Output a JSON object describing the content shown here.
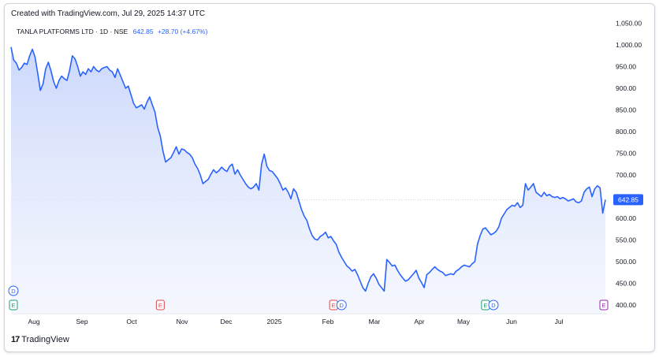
{
  "header": {
    "created": "Created with TradingView.com, Jul 29, 2025 14:37 UTC"
  },
  "legend": {
    "symbol": "TANLA PLATFORMS LTD · 1D · NSE",
    "price": "642.85",
    "change": "+28.70 (+4.67%)"
  },
  "brand": {
    "logo_text": "TradingView"
  },
  "colors": {
    "line": "#2962ff",
    "fill_top": "#c9d6fb",
    "fill_bottom": "#ffffff",
    "label_bg": "#2962ff",
    "earnings": "#e0454f",
    "earnings_green": "#1b9e77",
    "dividend": "#2962ff"
  },
  "chart_data": {
    "type": "area",
    "title": "TANLA PLATFORMS LTD · 1D · NSE",
    "ylim": [
      380,
      1060
    ],
    "y_ticks": [
      "400.00",
      "450.00",
      "500.00",
      "550.00",
      "600.00",
      "650.00",
      "700.00",
      "750.00",
      "800.00",
      "850.00",
      "900.00",
      "950.00",
      "1,000.00",
      "1,050.00"
    ],
    "x_ticks": [
      "Aug",
      "Sep",
      "Oct",
      "Nov",
      "Dec",
      "2025",
      "Feb",
      "Mar",
      "Apr",
      "May",
      "Jun",
      "Jul"
    ],
    "last_price_label": "642.85",
    "markers": [
      {
        "label": "D",
        "color": "blue",
        "idx": 0,
        "row": 1
      },
      {
        "label": "E",
        "color": "green",
        "idx": 0,
        "row": 2
      },
      {
        "label": "E",
        "color": "red",
        "idx": 56,
        "row": 2
      },
      {
        "label": "E",
        "color": "red",
        "idx": 121,
        "row": 2
      },
      {
        "label": "D",
        "color": "blue",
        "idx": 124,
        "row": 2
      },
      {
        "label": "E",
        "color": "green",
        "idx": 178,
        "row": 2
      },
      {
        "label": "D",
        "color": "blue",
        "idx": 181,
        "row": 2
      },
      {
        "label": "E",
        "color": "green",
        "idx": 243,
        "row": 2
      },
      {
        "label": "E",
        "color": "purple",
        "idx": 246,
        "row": 2
      }
    ],
    "series": [
      {
        "values": [
          995,
          965,
          958,
          942,
          948,
          958,
          955,
          975,
          990,
          972,
          935,
          895,
          910,
          945,
          960,
          940,
          915,
          900,
          918,
          928,
          922,
          918,
          942,
          975,
          968,
          950,
          928,
          938,
          932,
          945,
          938,
          950,
          942,
          938,
          945,
          948,
          950,
          942,
          938,
          925,
          945,
          930,
          915,
          900,
          905,
          885,
          865,
          855,
          858,
          862,
          852,
          868,
          880,
          862,
          845,
          810,
          790,
          755,
          730,
          735,
          740,
          752,
          765,
          748,
          760,
          758,
          752,
          748,
          740,
          725,
          715,
          700,
          680,
          685,
          690,
          702,
          712,
          705,
          710,
          718,
          712,
          708,
          720,
          725,
          702,
          712,
          700,
          690,
          680,
          672,
          668,
          672,
          680,
          665,
          725,
          748,
          720,
          710,
          708,
          700,
          692,
          680,
          665,
          670,
          660,
          645,
          668,
          660,
          640,
          620,
          605,
          595,
          575,
          560,
          552,
          550,
          558,
          562,
          568,
          555,
          558,
          548,
          540,
          522,
          510,
          500,
          490,
          485,
          478,
          482,
          470,
          455,
          440,
          432,
          450,
          465,
          472,
          462,
          448,
          440,
          432,
          505,
          498,
          490,
          492,
          480,
          470,
          462,
          455,
          458,
          465,
          472,
          480,
          462,
          452,
          440,
          470,
          475,
          482,
          488,
          482,
          478,
          475,
          468,
          470,
          472,
          470,
          478,
          482,
          488,
          492,
          490,
          488,
          495,
          500,
          540,
          560,
          575,
          578,
          570,
          562,
          565,
          570,
          580,
          600,
          610,
          620,
          625,
          630,
          628,
          636,
          625,
          630,
          680,
          665,
          672,
          680,
          660,
          655,
          650,
          660,
          652,
          655,
          650,
          648,
          650,
          645,
          648,
          645,
          640,
          642,
          645,
          638,
          636,
          640,
          660,
          668,
          672,
          650,
          668,
          675,
          670,
          612,
          642.85
        ]
      }
    ]
  }
}
